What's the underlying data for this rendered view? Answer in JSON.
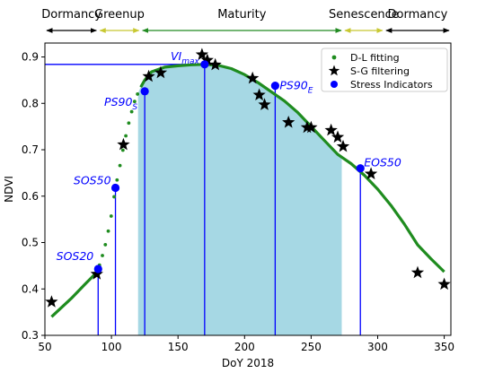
{
  "chart_data": {
    "type": "line",
    "xlabel": "DoY 2018",
    "ylabel": "NDVI",
    "xlim": [
      50,
      355
    ],
    "ylim": [
      0.3,
      0.93
    ],
    "xticks": [
      50,
      100,
      150,
      200,
      250,
      300,
      350
    ],
    "yticks": [
      0.3,
      0.4,
      0.5,
      0.6,
      0.7,
      0.8,
      0.9
    ],
    "phases": [
      {
        "label": "Dormancy",
        "from": 50,
        "to": 90,
        "color": "#000000"
      },
      {
        "label": "Greenup",
        "from": 90,
        "to": 122,
        "color": "#c8c832"
      },
      {
        "label": "Maturity",
        "from": 122,
        "to": 274,
        "color": "#228b22"
      },
      {
        "label": "Senescence",
        "from": 274,
        "to": 305,
        "color": "#c8c832"
      },
      {
        "label": "Dormancy",
        "from": 305,
        "to": 355,
        "color": "#000000"
      }
    ],
    "shaded_region": {
      "from": 120,
      "to": 273,
      "color": "#a6d8e4"
    },
    "series": [
      {
        "name": "D-L fitting",
        "style": "dotted-line",
        "color": "#1f8c1f",
        "x": [
          55,
          70,
          80,
          88,
          90,
          92,
          95,
          98,
          100,
          103,
          106,
          110,
          114,
          118,
          122,
          125,
          130,
          140,
          150,
          160,
          170,
          180,
          190,
          200,
          210,
          220,
          230,
          240,
          250,
          260,
          270,
          280,
          290,
          300,
          310,
          320,
          330,
          340,
          350
        ],
        "y": [
          0.34,
          0.38,
          0.41,
          0.433,
          0.443,
          0.46,
          0.49,
          0.53,
          0.56,
          0.618,
          0.66,
          0.72,
          0.77,
          0.81,
          0.835,
          0.85,
          0.868,
          0.878,
          0.881,
          0.883,
          0.884,
          0.882,
          0.875,
          0.862,
          0.845,
          0.825,
          0.805,
          0.78,
          0.75,
          0.72,
          0.69,
          0.67,
          0.645,
          0.615,
          0.58,
          0.54,
          0.495,
          0.465,
          0.437
        ]
      },
      {
        "name": "S-G filtering",
        "style": "star",
        "color": "#000000",
        "x": [
          55,
          89,
          109,
          128,
          137,
          168,
          172,
          178,
          206,
          211,
          215,
          233,
          247,
          250,
          265,
          270,
          274,
          295,
          330,
          350
        ],
        "y": [
          0.372,
          0.432,
          0.711,
          0.858,
          0.866,
          0.905,
          0.893,
          0.883,
          0.854,
          0.818,
          0.797,
          0.759,
          0.748,
          0.748,
          0.742,
          0.727,
          0.707,
          0.648,
          0.435,
          0.41
        ]
      },
      {
        "name": "Stress Indicators",
        "style": "point",
        "color": "#0000ff",
        "x": [
          90,
          103,
          125,
          170,
          223,
          287
        ],
        "y": [
          0.443,
          0.618,
          0.826,
          0.884,
          0.838,
          0.66
        ]
      }
    ],
    "annotations": [
      {
        "label": "SOS20",
        "x": 90,
        "y": 0.443,
        "italic": true
      },
      {
        "label": "SOS50",
        "x": 103,
        "y": 0.618,
        "italic": true
      },
      {
        "label": "PS90",
        "sub": "S",
        "x": 125,
        "y": 0.826,
        "italic": true
      },
      {
        "label": "VI",
        "sub": "max",
        "x": 170,
        "y": 0.884,
        "italic": true
      },
      {
        "label": "PS90",
        "sub": "E",
        "x": 223,
        "y": 0.838,
        "italic": true
      },
      {
        "label": "EOS50",
        "x": 287,
        "y": 0.66,
        "italic": true
      }
    ],
    "vi_max_hline": {
      "y": 0.884,
      "from": 50,
      "to": 170
    },
    "legend": {
      "placement": "top-right"
    }
  }
}
